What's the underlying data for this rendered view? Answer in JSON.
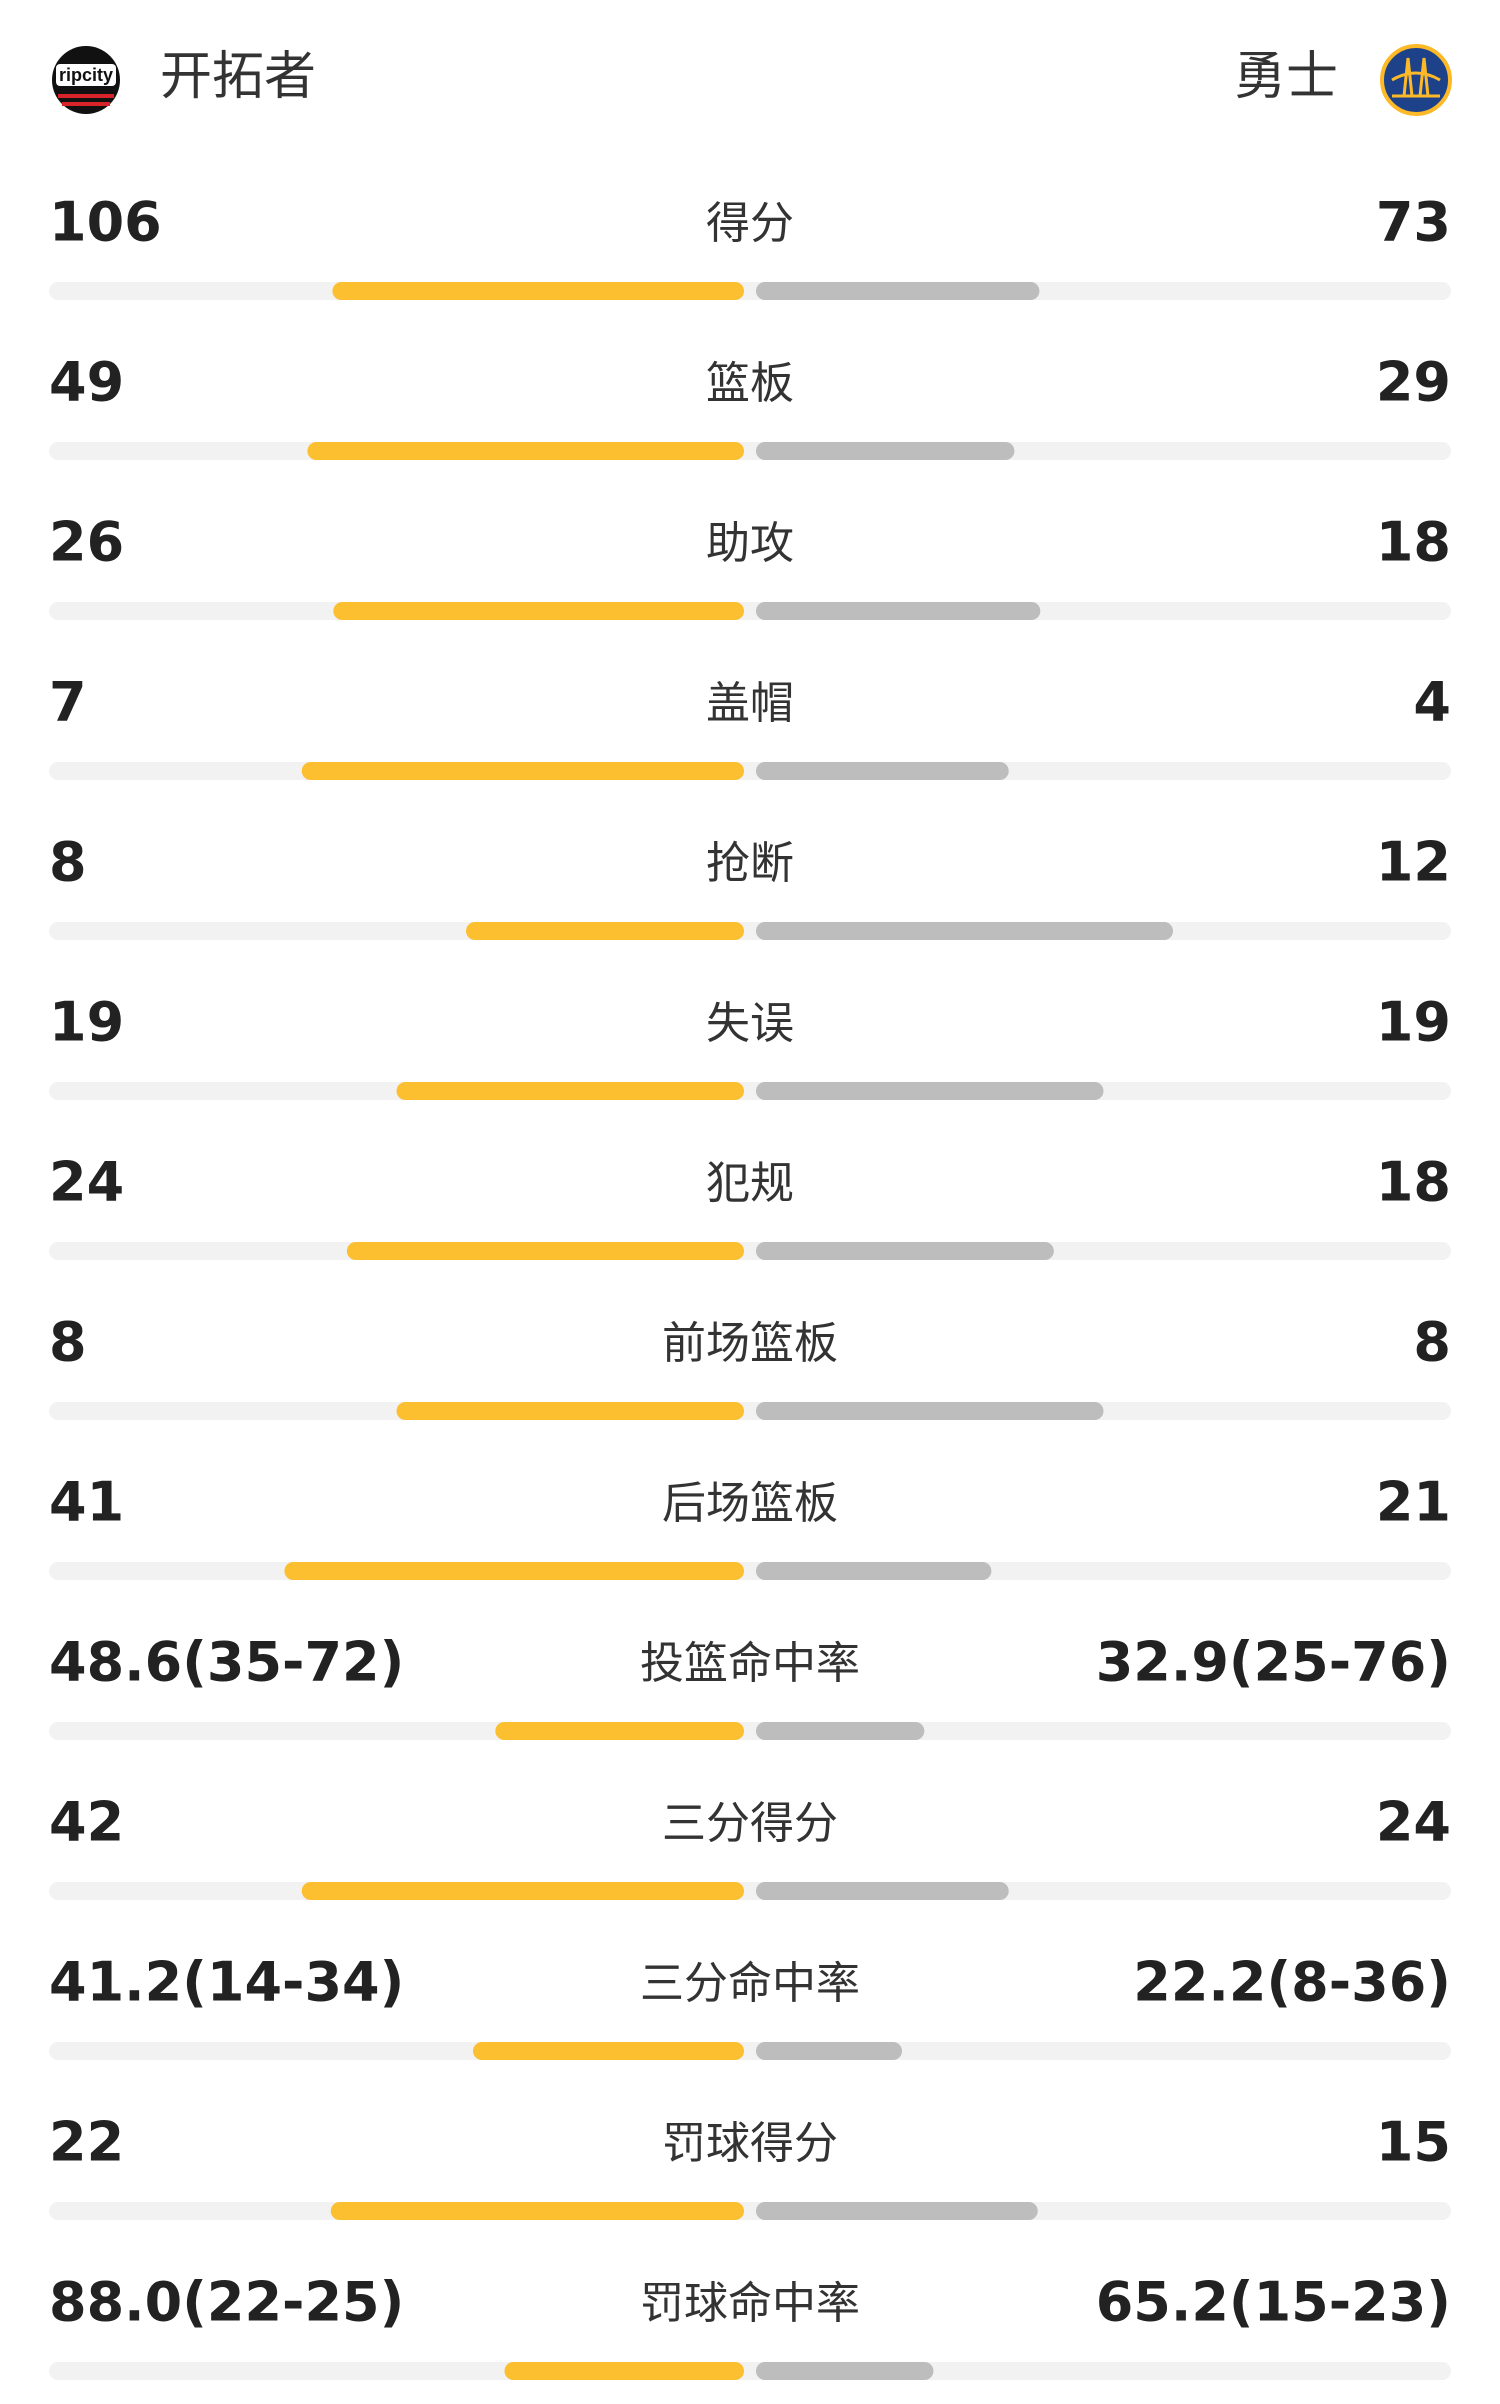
{
  "header": {
    "left_team": "开拓者",
    "right_team": "勇士"
  },
  "rows": [
    {
      "label": "得分",
      "left": 106,
      "right": 73
    },
    {
      "label": "篮板",
      "left": 49,
      "right": 29
    },
    {
      "label": "助攻",
      "left": 26,
      "right": 18
    },
    {
      "label": "盖帽",
      "left": 7,
      "right": 4
    },
    {
      "label": "抢断",
      "left": 8,
      "right": 12
    },
    {
      "label": "失误",
      "left": 19,
      "right": 19
    },
    {
      "label": "犯规",
      "left": 24,
      "right": 18
    },
    {
      "label": "前场篮板",
      "left": 8,
      "right": 8
    },
    {
      "label": "后场篮板",
      "left": 41,
      "right": 21
    },
    {
      "label": "投篮命中率",
      "left": {
        "value": 48.6,
        "label": "48.6(35-72)"
      },
      "right": {
        "value": 32.9,
        "label": "32.9(25-76)"
      }
    },
    {
      "label": "三分得分",
      "left": 42,
      "right": 24
    },
    {
      "label": "三分命中率",
      "left": {
        "value": 41.2,
        "label": "41.2(14-34)"
      },
      "right": {
        "value": 22.2,
        "label": "22.2(8-36)"
      }
    },
    {
      "label": "罚球得分",
      "left": 22,
      "right": 15
    },
    {
      "label": "罚球命中率",
      "left": {
        "value": 88.0,
        "label": "88.0(22-25)"
      },
      "right": {
        "value": 65.2,
        "label": "65.2(15-23)"
      }
    }
  ]
}
